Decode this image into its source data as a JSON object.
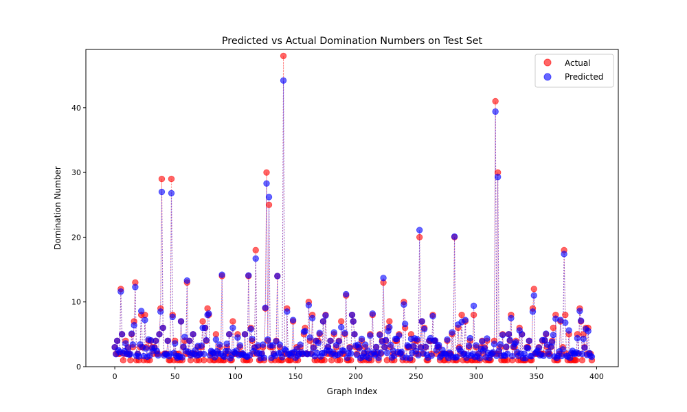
{
  "chart_data": {
    "type": "scatter",
    "title": "Predicted vs Actual Domination Numbers on Test Set",
    "xlabel": "Graph Index",
    "ylabel": "Domination Number",
    "xlim": [
      -24,
      418
    ],
    "ylim": [
      0,
      49
    ],
    "xticks": [
      0,
      50,
      100,
      150,
      200,
      250,
      300,
      350,
      400
    ],
    "yticks": [
      0,
      10,
      20,
      30,
      40
    ],
    "legend_position": "top-right",
    "grid": false,
    "colors": {
      "actual": "#ff0000",
      "predicted": "#0000ff",
      "connector": "#b05ad8"
    },
    "n_points": 397,
    "series": [
      {
        "name": "Actual",
        "points": [
          [
            0,
            3
          ],
          [
            2,
            4
          ],
          [
            5,
            12
          ],
          [
            6,
            5
          ],
          [
            9,
            4
          ],
          [
            14,
            5
          ],
          [
            16,
            7
          ],
          [
            17,
            13
          ],
          [
            22,
            8
          ],
          [
            23,
            3
          ],
          [
            25,
            8
          ],
          [
            28,
            4
          ],
          [
            34,
            4
          ],
          [
            37,
            5
          ],
          [
            38,
            9
          ],
          [
            39,
            29
          ],
          [
            40,
            6
          ],
          [
            44,
            4
          ],
          [
            46,
            1
          ],
          [
            47,
            29
          ],
          [
            48,
            8
          ],
          [
            50,
            4
          ],
          [
            55,
            7
          ],
          [
            58,
            4
          ],
          [
            60,
            13
          ],
          [
            62,
            4
          ],
          [
            65,
            5
          ],
          [
            73,
            7
          ],
          [
            75,
            6
          ],
          [
            77,
            9
          ],
          [
            78,
            8
          ],
          [
            84,
            5
          ],
          [
            87,
            3
          ],
          [
            89,
            14
          ],
          [
            95,
            5
          ],
          [
            98,
            7
          ],
          [
            102,
            5
          ],
          [
            104,
            3
          ],
          [
            108,
            5
          ],
          [
            111,
            14
          ],
          [
            113,
            6
          ],
          [
            117,
            18
          ],
          [
            119,
            3
          ],
          [
            123,
            3
          ],
          [
            125,
            9
          ],
          [
            126,
            30
          ],
          [
            127,
            4
          ],
          [
            128,
            25
          ],
          [
            129,
            3
          ],
          [
            135,
            14
          ],
          [
            137,
            3
          ],
          [
            140,
            48
          ],
          [
            141,
            2
          ],
          [
            143,
            9
          ],
          [
            148,
            7
          ],
          [
            154,
            3
          ],
          [
            157,
            5
          ],
          [
            158,
            6
          ],
          [
            161,
            10
          ],
          [
            164,
            8
          ],
          [
            167,
            4
          ],
          [
            170,
            5
          ],
          [
            173,
            7
          ],
          [
            175,
            8
          ],
          [
            179,
            4
          ],
          [
            182,
            5
          ],
          [
            186,
            4
          ],
          [
            188,
            7
          ],
          [
            191,
            5
          ],
          [
            192,
            11
          ],
          [
            197,
            8
          ],
          [
            198,
            7
          ],
          [
            199,
            5
          ],
          [
            205,
            4
          ],
          [
            208,
            3
          ],
          [
            212,
            5
          ],
          [
            214,
            8
          ],
          [
            220,
            5
          ],
          [
            222,
            4
          ],
          [
            223,
            13
          ],
          [
            225,
            4
          ],
          [
            227,
            6
          ],
          [
            228,
            7
          ],
          [
            233,
            4
          ],
          [
            236,
            5
          ],
          [
            240,
            10
          ],
          [
            241,
            6
          ],
          [
            243,
            3
          ],
          [
            246,
            5
          ],
          [
            253,
            20
          ],
          [
            255,
            7
          ],
          [
            257,
            6
          ],
          [
            262,
            4
          ],
          [
            264,
            8
          ],
          [
            265,
            4
          ],
          [
            268,
            3
          ],
          [
            272,
            2
          ],
          [
            276,
            4
          ],
          [
            280,
            5
          ],
          [
            282,
            20
          ],
          [
            285,
            6
          ],
          [
            288,
            8
          ],
          [
            291,
            7
          ],
          [
            295,
            4
          ],
          [
            298,
            8
          ],
          [
            300,
            3
          ],
          [
            305,
            4
          ],
          [
            315,
            4
          ],
          [
            316,
            41
          ],
          [
            318,
            30
          ],
          [
            322,
            5
          ],
          [
            327,
            5
          ],
          [
            329,
            8
          ],
          [
            336,
            6
          ],
          [
            338,
            5
          ],
          [
            347,
            9
          ],
          [
            348,
            12
          ],
          [
            355,
            4
          ],
          [
            358,
            5
          ],
          [
            362,
            3
          ],
          [
            364,
            6
          ],
          [
            366,
            8
          ],
          [
            370,
            7
          ],
          [
            373,
            18
          ],
          [
            374,
            8
          ],
          [
            377,
            5
          ],
          [
            383,
            1
          ],
          [
            384,
            5
          ],
          [
            386,
            9
          ],
          [
            387,
            7
          ],
          [
            389,
            5
          ],
          [
            391,
            6
          ],
          [
            393,
            6
          ]
        ]
      },
      {
        "name": "Predicted",
        "points": [
          [
            0,
            3
          ],
          [
            2,
            4
          ],
          [
            5,
            11.6
          ],
          [
            6,
            5
          ],
          [
            9,
            3.6
          ],
          [
            14,
            5.1
          ],
          [
            16,
            6.4
          ],
          [
            17,
            12.3
          ],
          [
            22,
            8.6
          ],
          [
            23,
            3
          ],
          [
            25,
            7.2
          ],
          [
            28,
            4.2
          ],
          [
            34,
            4
          ],
          [
            37,
            5
          ],
          [
            38,
            8.5
          ],
          [
            39,
            27
          ],
          [
            40,
            6
          ],
          [
            44,
            4
          ],
          [
            46,
            2
          ],
          [
            47,
            26.8
          ],
          [
            48,
            7.7
          ],
          [
            50,
            3.6
          ],
          [
            55,
            7
          ],
          [
            58,
            4.6
          ],
          [
            60,
            13.3
          ],
          [
            62,
            4
          ],
          [
            65,
            5
          ],
          [
            73,
            6
          ],
          [
            75,
            6
          ],
          [
            77,
            8
          ],
          [
            78,
            8.2
          ],
          [
            84,
            4.2
          ],
          [
            87,
            3.4
          ],
          [
            89,
            14.2
          ],
          [
            95,
            5
          ],
          [
            98,
            6
          ],
          [
            102,
            4.5
          ],
          [
            104,
            3.3
          ],
          [
            108,
            5
          ],
          [
            111,
            14.1
          ],
          [
            113,
            5.8
          ],
          [
            117,
            16.7
          ],
          [
            119,
            3.3
          ],
          [
            123,
            3.4
          ],
          [
            125,
            9.1
          ],
          [
            126,
            28.3
          ],
          [
            127,
            4.2
          ],
          [
            128,
            26.2
          ],
          [
            129,
            3.3
          ],
          [
            135,
            14
          ],
          [
            137,
            3.4
          ],
          [
            140,
            44.2
          ],
          [
            141,
            2.7
          ],
          [
            143,
            8.5
          ],
          [
            148,
            7.2
          ],
          [
            154,
            3.4
          ],
          [
            157,
            5.4
          ],
          [
            158,
            5.5
          ],
          [
            161,
            9.5
          ],
          [
            164,
            7.5
          ],
          [
            167,
            4
          ],
          [
            170,
            5.2
          ],
          [
            173,
            7
          ],
          [
            175,
            7.9
          ],
          [
            179,
            4
          ],
          [
            182,
            5.3
          ],
          [
            186,
            3.9
          ],
          [
            188,
            6.1
          ],
          [
            191,
            5.2
          ],
          [
            192,
            11.2
          ],
          [
            197,
            8
          ],
          [
            198,
            7
          ],
          [
            199,
            5
          ],
          [
            205,
            4.3
          ],
          [
            208,
            3.4
          ],
          [
            212,
            4.8
          ],
          [
            214,
            8.2
          ],
          [
            220,
            4.9
          ],
          [
            222,
            3.9
          ],
          [
            223,
            13.7
          ],
          [
            225,
            4.1
          ],
          [
            227,
            5.5
          ],
          [
            228,
            6.1
          ],
          [
            233,
            4.3
          ],
          [
            236,
            4.8
          ],
          [
            240,
            9.6
          ],
          [
            241,
            6.6
          ],
          [
            243,
            3.3
          ],
          [
            246,
            4.3
          ],
          [
            253,
            21.1
          ],
          [
            255,
            7
          ],
          [
            257,
            5.8
          ],
          [
            262,
            4.4
          ],
          [
            264,
            7.8
          ],
          [
            265,
            4
          ],
          [
            268,
            3.2
          ],
          [
            272,
            2.6
          ],
          [
            276,
            4.2
          ],
          [
            280,
            5.3
          ],
          [
            282,
            20.1
          ],
          [
            285,
            6.5
          ],
          [
            288,
            6.9
          ],
          [
            291,
            7.2
          ],
          [
            295,
            4.4
          ],
          [
            298,
            9.4
          ],
          [
            300,
            3.3
          ],
          [
            305,
            3.9
          ],
          [
            315,
            3.5
          ],
          [
            316,
            39.4
          ],
          [
            318,
            29.3
          ],
          [
            322,
            4.9
          ],
          [
            327,
            5
          ],
          [
            329,
            7.5
          ],
          [
            336,
            5.6
          ],
          [
            338,
            5
          ],
          [
            347,
            8.5
          ],
          [
            348,
            11
          ],
          [
            355,
            4.1
          ],
          [
            358,
            5.1
          ],
          [
            362,
            3.1
          ],
          [
            364,
            4.9
          ],
          [
            366,
            7.4
          ],
          [
            370,
            7.2
          ],
          [
            373,
            17.4
          ],
          [
            374,
            6.8
          ],
          [
            377,
            5.6
          ],
          [
            383,
            2.2
          ],
          [
            384,
            4.4
          ],
          [
            386,
            8.6
          ],
          [
            387,
            7.1
          ],
          [
            389,
            4.3
          ],
          [
            391,
            5.8
          ],
          [
            393,
            5.5
          ]
        ]
      }
    ]
  }
}
